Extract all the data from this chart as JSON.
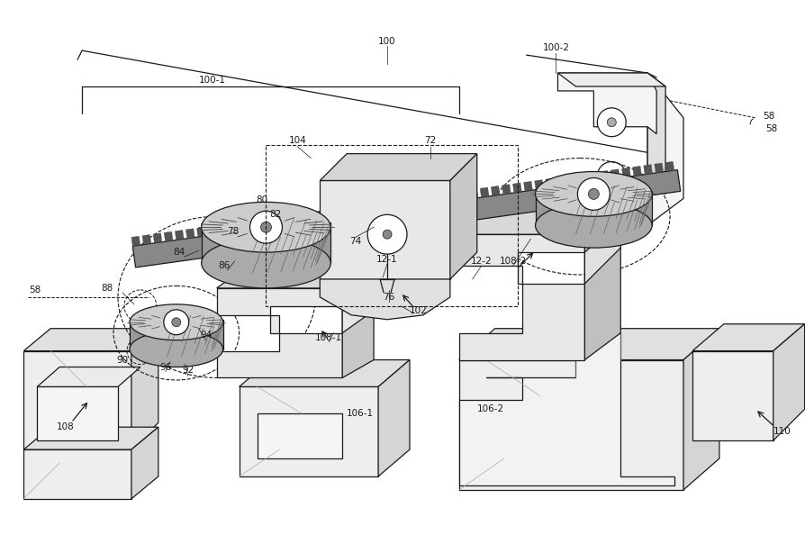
{
  "bg_color": "#ffffff",
  "lc": "#1a1a1a",
  "figsize": [
    8.95,
    6.04
  ],
  "dpi": 100,
  "fs": 7.5
}
